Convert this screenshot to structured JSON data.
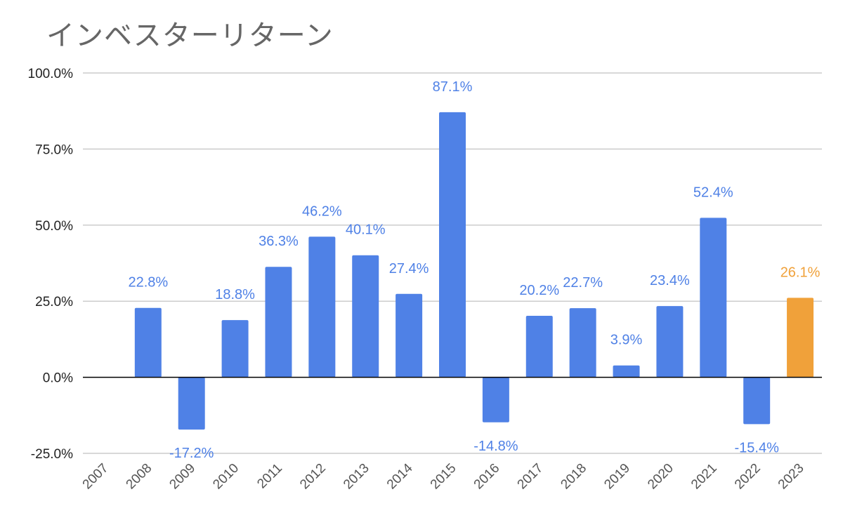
{
  "chart_data": {
    "type": "bar",
    "title": "インベスターリターン",
    "xlabel": "",
    "ylabel": "",
    "ylim": [
      -25,
      100
    ],
    "yticks": [
      -25,
      0,
      25,
      50,
      75,
      100
    ],
    "ytick_labels": [
      "-25.0%",
      "0.0%",
      "25.0%",
      "50.0%",
      "75.0%",
      "100.0%"
    ],
    "categories": [
      "2007",
      "2008",
      "2009",
      "2010",
      "2011",
      "2012",
      "2013",
      "2014",
      "2015",
      "2016",
      "2017",
      "2018",
      "2019",
      "2020",
      "2021",
      "2022",
      "2023"
    ],
    "values": [
      null,
      22.8,
      -17.2,
      18.8,
      36.3,
      46.2,
      40.1,
      27.4,
      87.1,
      -14.8,
      20.2,
      22.7,
      3.9,
      23.4,
      52.4,
      -15.4,
      26.1
    ],
    "data_labels": [
      "",
      "22.8%",
      "-17.2%",
      "18.8%",
      "36.3%",
      "46.2%",
      "40.1%",
      "27.4%",
      "87.1%",
      "-14.8%",
      "20.2%",
      "22.7%",
      "3.9%",
      "23.4%",
      "52.4%",
      "-15.4%",
      "26.1%"
    ],
    "grid": true,
    "legend": "none",
    "colors": {
      "default": "#4f81e6",
      "highlight": "#f0a13a",
      "grid": "#cccccc",
      "zero_line": "#000000"
    },
    "highlight_category": "2023"
  }
}
